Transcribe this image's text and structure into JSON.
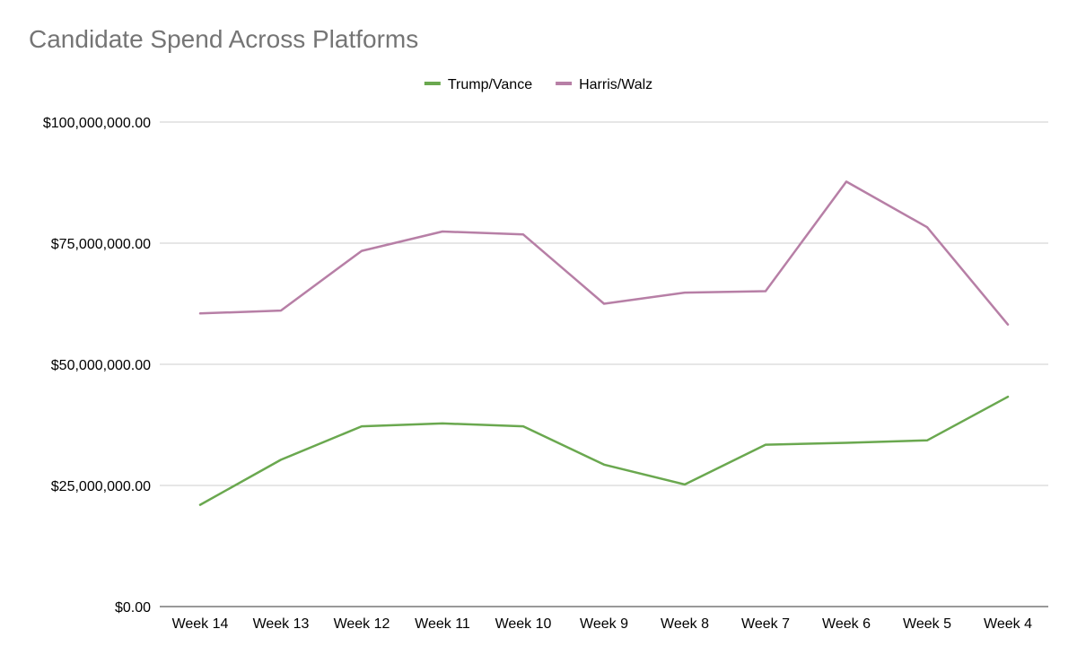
{
  "chart_data": {
    "type": "line",
    "title": "Candidate Spend Across Platforms",
    "xlabel": "",
    "ylabel": "",
    "categories": [
      "Week 14",
      "Week 13",
      "Week 12",
      "Week 11",
      "Week 10",
      "Week 9",
      "Week 8",
      "Week 7",
      "Week 6",
      "Week 5",
      "Week 4"
    ],
    "series": [
      {
        "name": "Trump/Vance",
        "color": "#6aa84f",
        "values": [
          21000000,
          30300000,
          37200000,
          37800000,
          37200000,
          29300000,
          25200000,
          33400000,
          33800000,
          34300000,
          43300000
        ]
      },
      {
        "name": "Harris/Walz",
        "color": "#b77fa6",
        "values": [
          60500000,
          61100000,
          73400000,
          77400000,
          76800000,
          62500000,
          64800000,
          65100000,
          87700000,
          78300000,
          58200000
        ]
      }
    ],
    "ylim": [
      0,
      100000000
    ],
    "yticks": [
      {
        "value": 0,
        "label": "$0.00"
      },
      {
        "value": 25000000,
        "label": "$25,000,000.00"
      },
      {
        "value": 50000000,
        "label": "$50,000,000.00"
      },
      {
        "value": 75000000,
        "label": "$75,000,000.00"
      },
      {
        "value": 100000000,
        "label": "$100,000,000.00"
      }
    ],
    "grid": true,
    "legend_position": "top-center",
    "colors": {
      "title": "#757575",
      "gridline": "#cccccc",
      "axis": "#333333",
      "tick_text": "#000000"
    }
  }
}
